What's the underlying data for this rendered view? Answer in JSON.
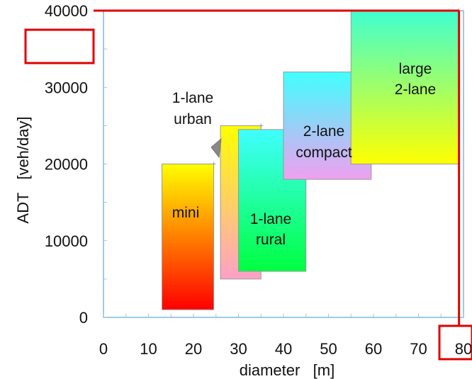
{
  "chart_data": {
    "type": "area",
    "xlabel": "diameter   [m]",
    "ylabel": "ADT   [veh/day]",
    "xlim": [
      0,
      80
    ],
    "ylim": [
      0,
      40000
    ],
    "x_ticks": [
      "0",
      "10",
      "20",
      "30",
      "40",
      "50",
      "60",
      "70",
      "80"
    ],
    "y_ticks": [
      "0",
      "10000",
      "20000",
      "30000",
      "40000"
    ],
    "grid": false,
    "regions": [
      {
        "label": "mini",
        "x": [
          13,
          24.5
        ],
        "y": [
          1000,
          20000
        ],
        "gradient": [
          "#ffff00",
          "#ff0000"
        ]
      },
      {
        "label": "1-lane urban",
        "x": [
          26,
          35
        ],
        "y": [
          5000,
          25000
        ],
        "gradient": [
          "#ffff00",
          "#ffa0c8"
        ]
      },
      {
        "label": "1-lane rural",
        "x": [
          30,
          45
        ],
        "y": [
          6000,
          24500
        ],
        "gradient": [
          "#40ffff",
          "#00ff40"
        ]
      },
      {
        "label": "2-lane compact",
        "x": [
          40,
          59.5
        ],
        "y": [
          18000,
          32000
        ],
        "gradient": [
          "#40ffff",
          "#f0a0f0"
        ]
      },
      {
        "label": "large 2-lane",
        "x": [
          55,
          79
        ],
        "y": [
          20000,
          40000
        ],
        "gradient": [
          "#40ffd0",
          "#ffff00"
        ]
      }
    ],
    "highlight": {
      "x": 79,
      "y": 40000,
      "color": "#e00000",
      "boxed_ticks": [
        "40000",
        "80"
      ]
    }
  },
  "region_text": {
    "mini": [
      "mini"
    ],
    "urban": [
      "1-lane",
      "urban"
    ],
    "rural": [
      "1-lane",
      "rural"
    ],
    "compact": [
      "2-lane",
      "compact"
    ],
    "large": [
      "large",
      "2-lane"
    ]
  }
}
